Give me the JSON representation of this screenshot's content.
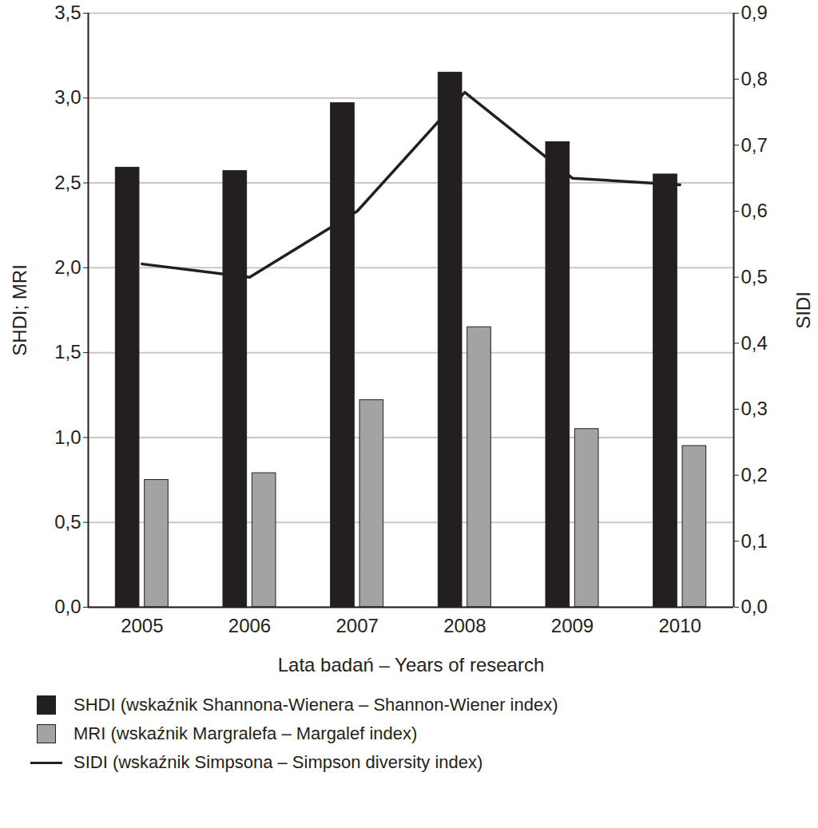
{
  "chart_data": {
    "type": "bar",
    "x_label": "Lata badań – Years of research",
    "y_label": "SHDI; MRI",
    "y2_label": "SIDI",
    "categories": [
      "2005",
      "2006",
      "2007",
      "2008",
      "2009",
      "2010"
    ],
    "series": [
      {
        "name": "SHDI (wskaźnik Shannona-Wienera – Shannon-Wiener index)",
        "type": "bar",
        "color": "#231f20",
        "values": [
          2.59,
          2.57,
          2.97,
          3.15,
          2.74,
          2.55
        ]
      },
      {
        "name": "MRI (wskaźnik Margralefa – Margalef index)",
        "type": "bar",
        "color": "#a3a3a3",
        "values": [
          0.75,
          0.79,
          1.22,
          1.65,
          1.05,
          0.95
        ]
      },
      {
        "name": "SIDI (wskaźnik Simpsona – Simpson diversity index)",
        "type": "line",
        "axis": "y2",
        "color": "#231f20",
        "values": [
          0.52,
          0.5,
          0.6,
          0.78,
          0.65,
          0.64
        ]
      }
    ],
    "ylim": [
      0,
      3.5
    ],
    "yticks": [
      {
        "value": 0,
        "label": "0,0"
      },
      {
        "value": 0.5,
        "label": "0,5"
      },
      {
        "value": 1,
        "label": "1,0"
      },
      {
        "value": 1.5,
        "label": "1,5"
      },
      {
        "value": 2,
        "label": "2,0"
      },
      {
        "value": 2.5,
        "label": "2,5"
      },
      {
        "value": 3,
        "label": "3,0"
      },
      {
        "value": 3.5,
        "label": "3,5"
      }
    ],
    "y2lim": [
      0,
      0.9
    ],
    "y2ticks": [
      {
        "value": 0,
        "label": "0,0"
      },
      {
        "value": 0.1,
        "label": "0,1"
      },
      {
        "value": 0.2,
        "label": "0,2"
      },
      {
        "value": 0.3,
        "label": "0,3"
      },
      {
        "value": 0.4,
        "label": "0,4"
      },
      {
        "value": 0.5,
        "label": "0,5"
      },
      {
        "value": 0.6,
        "label": "0,6"
      },
      {
        "value": 0.7,
        "label": "0,7"
      },
      {
        "value": 0.8,
        "label": "0,8"
      },
      {
        "value": 0.9,
        "label": "0,9"
      }
    ],
    "grid": true,
    "legend": "bottom"
  }
}
